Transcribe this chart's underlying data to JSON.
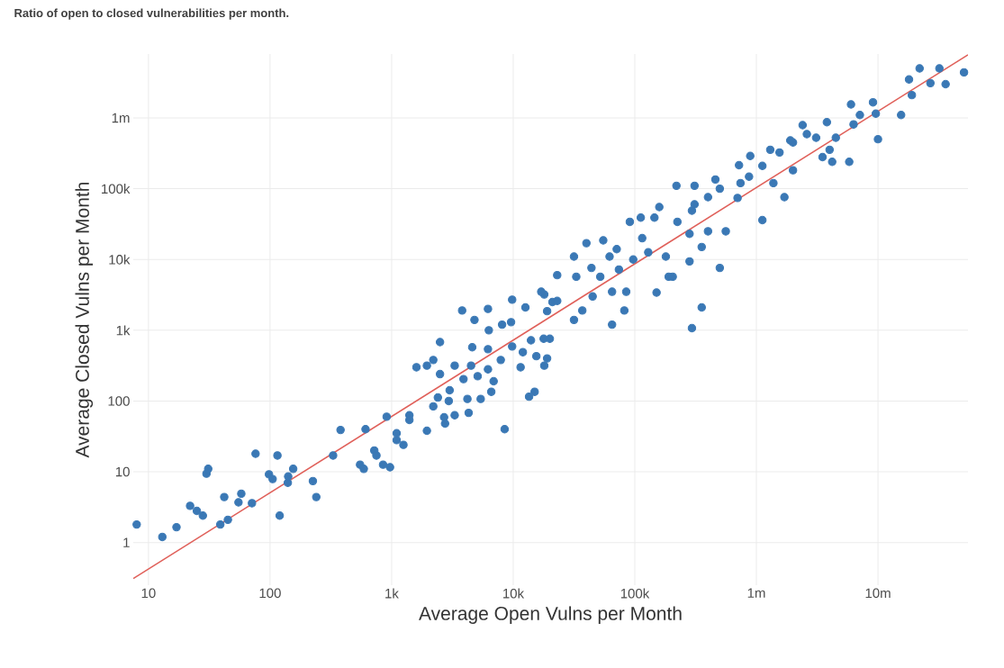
{
  "chart_data": {
    "type": "scatter",
    "title": "Ratio of open to closed vulnerabilities per month.",
    "xlabel": "Average Open Vulns per Month",
    "ylabel": "Average Closed Vulns per Month",
    "log": "xy",
    "grid": true,
    "xlim": [
      7.5,
      55000000
    ],
    "ylim": [
      0.25,
      8000000
    ],
    "xticks": [
      10,
      100,
      {
        "value": 1000,
        "label": "1k"
      },
      {
        "value": 10000,
        "label": "10k"
      },
      {
        "value": 100000,
        "label": "100k"
      },
      {
        "value": 1000000,
        "label": "1m"
      },
      {
        "value": 10000000,
        "label": "10m"
      }
    ],
    "yticks": [
      1,
      10,
      100,
      {
        "value": 1000,
        "label": "1k"
      },
      {
        "value": 10000,
        "label": "10k"
      },
      {
        "value": 100000,
        "label": "100k"
      },
      {
        "value": 1000000,
        "label": "1m"
      }
    ],
    "series": [
      {
        "type": "scatter",
        "color": "#3a78b5",
        "marker": "circle",
        "x": [
          8,
          13,
          17,
          22,
          25,
          28,
          30,
          31,
          39,
          42,
          45,
          55,
          58,
          71,
          76,
          98,
          105,
          115,
          120,
          140,
          141,
          155,
          225,
          240,
          330,
          380,
          550,
          590,
          610,
          720,
          750,
          850,
          910,
          970,
          1100,
          1100,
          1250,
          1400,
          1400,
          1600,
          1950,
          1950,
          2200,
          2500,
          2500,
          2200,
          2400,
          2700,
          2750,
          2950,
          3000,
          3300,
          3300,
          3800,
          3900,
          4200,
          4300,
          4500,
          4600,
          4800,
          5100,
          5400,
          6200,
          6200,
          6300,
          6200,
          6600,
          6900,
          7900,
          8100,
          8500,
          9600,
          9800,
          9800,
          11500,
          12000,
          12600,
          13500,
          14000,
          15000,
          15500,
          17800,
          18000,
          19000,
          18000,
          21000,
          20000,
          17000,
          19000,
          23000,
          23000,
          31600,
          31600,
          33000,
          37000,
          40000,
          44000,
          45000,
          55000,
          52000,
          62000,
          65000,
          65000,
          71000,
          74000,
          85000,
          82000,
          91000,
          97000,
          112000,
          115000,
          129000,
          145000,
          151000,
          159000,
          180000,
          190000,
          205000,
          224000,
          282000,
          282000,
          295000,
          355000,
          355000,
          400000,
          500000,
          560000,
          295000,
          220000,
          310000,
          310000,
          460000,
          500000,
          400000,
          720000,
          890000,
          740000,
          700000,
          870000,
          1120000,
          1300000,
          1550000,
          1380000,
          1700000,
          1120000,
          2000000,
          2000000,
          1900000,
          2400000,
          2600000,
          3100000,
          3500000,
          3800000,
          4000000,
          4200000,
          4500000,
          5800000,
          6000000,
          6300000,
          7100000,
          9100000,
          9600000,
          10000000,
          15500000,
          18000000,
          19000000,
          22000000,
          27000000,
          32000000,
          36000000,
          51000000
        ],
        "values": [
          1.8,
          1.2,
          1.65,
          3.3,
          2.8,
          2.4,
          9.4,
          11,
          1.8,
          4.4,
          2.1,
          3.7,
          4.9,
          3.6,
          18,
          9.2,
          7.9,
          17,
          2.4,
          7,
          8.6,
          11,
          7.4,
          4.4,
          17,
          39,
          12.6,
          11,
          40,
          20,
          17,
          12.6,
          60,
          11.6,
          28,
          35,
          24,
          63,
          54,
          300,
          38,
          316,
          380,
          240,
          680,
          84,
          112,
          59,
          48,
          100,
          142,
          63,
          316,
          1900,
          204,
          107,
          68,
          316,
          575,
          1400,
          224,
          107,
          2000,
          540,
          1000,
          280,
          135,
          190,
          380,
          1200,
          40,
          1300,
          2700,
          590,
          300,
          490,
          2100,
          115,
          720,
          135,
          430,
          760,
          316,
          400,
          3200,
          2500,
          760,
          3500,
          1860,
          6000,
          2600,
          11000,
          1400,
          5700,
          1900,
          17000,
          7600,
          3000,
          18600,
          5700,
          11000,
          3500,
          1200,
          14000,
          7200,
          3500,
          1900,
          34000,
          10000,
          39000,
          20000,
          12600,
          39000,
          3400,
          55000,
          11000,
          5700,
          5700,
          34000,
          23000,
          9400,
          1070,
          2100,
          15000,
          25000,
          7600,
          25000,
          49000,
          110000,
          110000,
          60000,
          135000,
          100000,
          76000,
          215000,
          290000,
          120000,
          74000,
          148000,
          210000,
          355000,
          325000,
          120000,
          76000,
          36000,
          182000,
          450000,
          480000,
          790000,
          590000,
          525000,
          280000,
          870000,
          355000,
          240000,
          525000,
          240000,
          1550000,
          810000,
          1100000,
          1660000,
          1150000,
          500000,
          1100000,
          3500000,
          2100000,
          5000000,
          3100000,
          5000000,
          3000000,
          4400000
        ]
      },
      {
        "type": "line",
        "color": "#e0605a",
        "x": [
          7.5,
          55000000
        ],
        "values": [
          0.31,
          7800000
        ]
      }
    ]
  }
}
